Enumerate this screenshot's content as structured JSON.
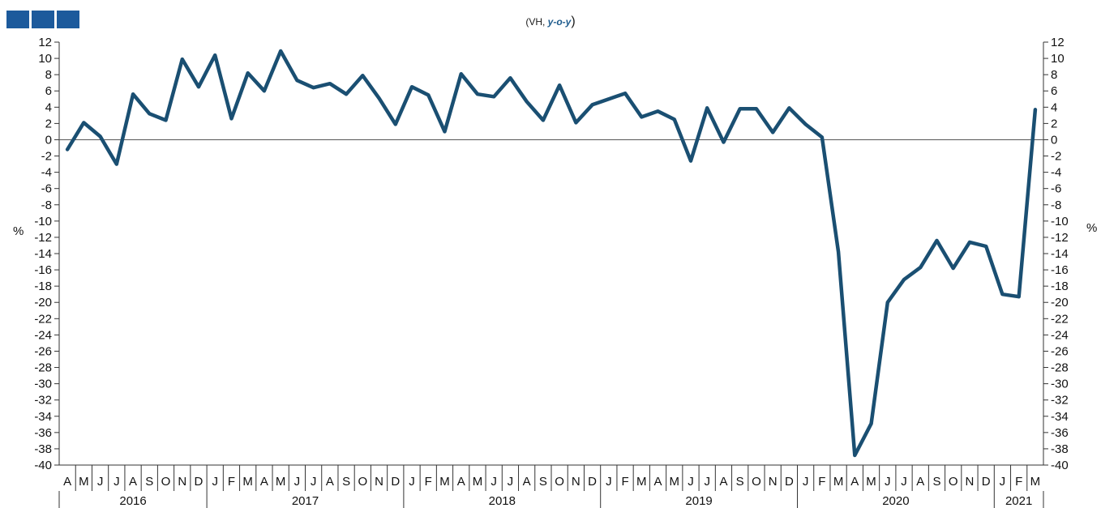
{
  "header": {
    "squares_color": "#1c5a9c",
    "subtitle_prefix": "(VH, ",
    "subtitle_em": "y-o-y",
    "subtitle_suffix": ")"
  },
  "chart_data": {
    "type": "line",
    "ylabel_left": "%",
    "ylabel_right": "%",
    "ylim": [
      -40,
      12
    ],
    "ytick_step": 2,
    "grid": false,
    "zero_line": true,
    "line_color": "#1a4f72",
    "x": [
      "A",
      "M",
      "J",
      "J",
      "A",
      "S",
      "O",
      "N",
      "D",
      "J",
      "F",
      "M",
      "A",
      "M",
      "J",
      "J",
      "A",
      "S",
      "O",
      "N",
      "D",
      "J",
      "F",
      "M",
      "A",
      "M",
      "J",
      "J",
      "A",
      "S",
      "O",
      "N",
      "D",
      "J",
      "F",
      "M",
      "A",
      "M",
      "J",
      "J",
      "A",
      "S",
      "O",
      "N",
      "D",
      "J",
      "F",
      "M",
      "A",
      "M",
      "J",
      "J",
      "A",
      "S",
      "O",
      "N",
      "D",
      "J",
      "F",
      "M"
    ],
    "years": [
      {
        "label": "2016",
        "months": 9
      },
      {
        "label": "2017",
        "months": 12
      },
      {
        "label": "2018",
        "months": 12
      },
      {
        "label": "2019",
        "months": 12
      },
      {
        "label": "2020",
        "months": 12
      },
      {
        "label": "2021",
        "months": 3
      }
    ],
    "series": [
      {
        "values": [
          -1.2,
          2.1,
          0.4,
          -3.0,
          5.6,
          3.2,
          2.4,
          9.9,
          6.5,
          10.4,
          2.6,
          8.2,
          6.0,
          10.9,
          7.3,
          6.4,
          6.9,
          5.6,
          7.9,
          5.1,
          1.9,
          6.5,
          5.5,
          1.0,
          8.1,
          5.6,
          5.3,
          7.6,
          4.7,
          2.4,
          6.7,
          2.1,
          4.3,
          5.0,
          5.7,
          2.8,
          3.5,
          2.5,
          -2.6,
          3.9,
          -0.3,
          3.8,
          3.8,
          0.9,
          3.9,
          1.9,
          0.3,
          -13.8,
          -38.8,
          -34.9,
          -20.0,
          -17.2,
          -15.7,
          -12.4,
          -15.8,
          -12.6,
          -13.1,
          -19.0,
          -19.3,
          3.7
        ]
      }
    ]
  }
}
